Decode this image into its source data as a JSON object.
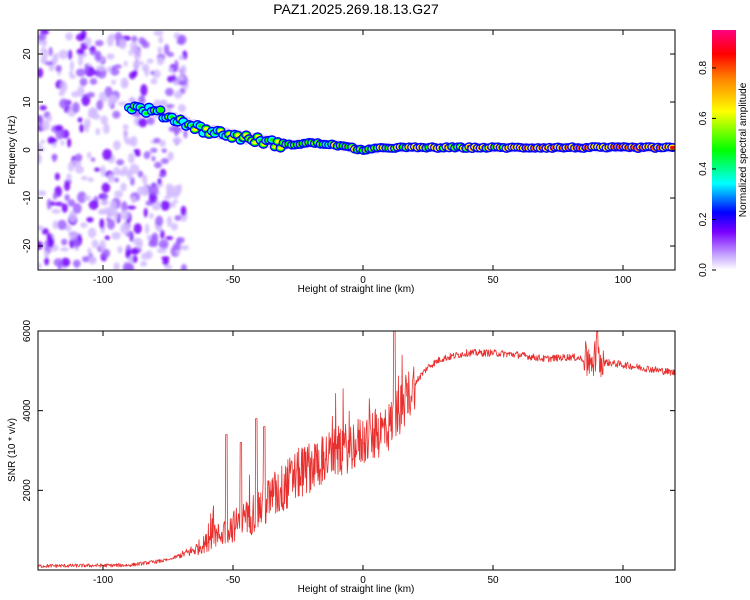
{
  "title": "PAZ1.2025.269.18.13.G27",
  "chart_data": [
    {
      "type": "heatmap",
      "xlabel": "Height of straight line (km)",
      "ylabel": "Frequency (Hz)",
      "xlim": [
        -125,
        120
      ],
      "ylim": [
        -25,
        25
      ],
      "xticks": [
        -100,
        -50,
        0,
        50,
        100
      ],
      "yticks": [
        -20,
        -10,
        0,
        10,
        20
      ],
      "colorbar": {
        "label": "Normalized spectral amplitude",
        "range": [
          0,
          0.95
        ],
        "ticks": [
          "0.0",
          "0.2",
          "0.4",
          "0.6",
          "0.8"
        ],
        "colormap": [
          "#ffffff",
          "#c8a8ff",
          "#7800ff",
          "#0000ff",
          "#00ffff",
          "#00ff00",
          "#ffff00",
          "#ff8000",
          "#ff0000",
          "#ff0080"
        ]
      },
      "ridge": {
        "x": [
          -90,
          -80,
          -70,
          -60,
          -50,
          -40,
          -30,
          -20,
          -10,
          0,
          10,
          20,
          50,
          100,
          120
        ],
        "freq": [
          9,
          8,
          6,
          4,
          3,
          2,
          1,
          1.5,
          1,
          0,
          0.5,
          0.5,
          0.5,
          0.5,
          0.5
        ]
      },
      "noise_region": [
        -125,
        -68
      ]
    },
    {
      "type": "line",
      "xlabel": "Height of straight line (km)",
      "ylabel": "SNR (10 * v/v)",
      "xlim": [
        -125,
        120
      ],
      "ylim": [
        0,
        6000
      ],
      "xticks": [
        -100,
        -50,
        0,
        50,
        100
      ],
      "yticks": [
        2000,
        4000,
        6000
      ],
      "color": "#e8302e",
      "trend": {
        "x": [
          -125,
          -90,
          -75,
          -65,
          -55,
          -45,
          -35,
          -25,
          -15,
          -5,
          5,
          10,
          15,
          20,
          25,
          30,
          40,
          50,
          60,
          70,
          80,
          90,
          100,
          110,
          120
        ],
        "y": [
          100,
          120,
          250,
          500,
          900,
          1300,
          1800,
          2400,
          2800,
          3100,
          3400,
          3600,
          4100,
          4700,
          5100,
          5300,
          5450,
          5450,
          5400,
          5300,
          5350,
          5250,
          5150,
          5050,
          4950
        ]
      },
      "spikes": [
        {
          "x": -52.5,
          "y": 3400
        },
        {
          "x": -47,
          "y": 3200
        },
        {
          "x": -41,
          "y": 3800
        },
        {
          "x": -38,
          "y": 3600
        },
        {
          "x": 12,
          "y": 6000
        },
        {
          "x": 90,
          "y": 5900
        }
      ]
    }
  ]
}
